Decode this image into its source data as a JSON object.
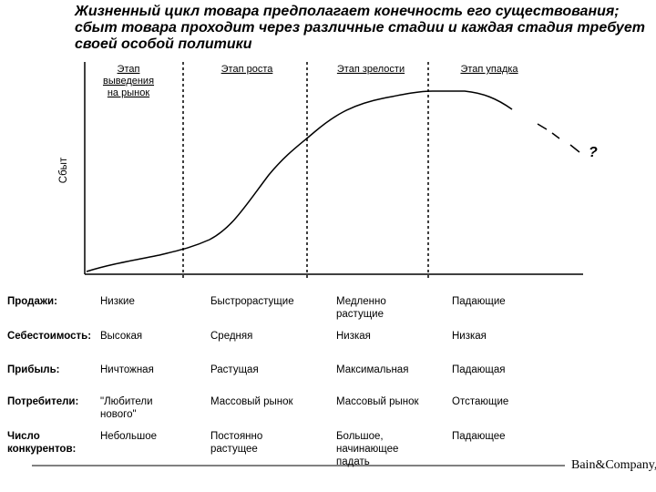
{
  "title": {
    "lines": [
      "Жизненный цикл товара предполагает конечность его существования;",
      "сбыт товара проходит через различные стадии и каждая стадия требует",
      "своей особой политики"
    ]
  },
  "diagram": {
    "y_axis_label": "Сбыт",
    "stages": [
      {
        "lines": [
          "Этап",
          "выведения",
          "на рынок"
        ]
      },
      {
        "lines": [
          "Этап роста"
        ]
      },
      {
        "lines": [
          "Этап зрелости"
        ]
      },
      {
        "lines": [
          "Этап упадка"
        ]
      }
    ],
    "unknown_marker": "?"
  },
  "table": {
    "rows": [
      {
        "label": [
          "Продажи:"
        ],
        "cells": [
          [
            "Низкие"
          ],
          [
            "Быстрорастущие"
          ],
          [
            "Медленно",
            "растущие"
          ],
          [
            "Падающие"
          ]
        ]
      },
      {
        "label": [
          "Себестоимость:"
        ],
        "cells": [
          [
            "Высокая"
          ],
          [
            "Средняя"
          ],
          [
            "Низкая"
          ],
          [
            "Низкая"
          ]
        ]
      },
      {
        "label": [
          "Прибыль:"
        ],
        "cells": [
          [
            "Ничтожная"
          ],
          [
            "Растущая"
          ],
          [
            "Максимальная"
          ],
          [
            "Падающая"
          ]
        ]
      },
      {
        "label": [
          "Потребители:"
        ],
        "cells": [
          [
            "\"Любители",
            "нового\""
          ],
          [
            "Массовый рынок"
          ],
          [
            "Массовый рынок"
          ],
          [
            "Отстающие"
          ]
        ]
      },
      {
        "label": [
          "Число",
          "конкурентов:"
        ],
        "cells": [
          [
            "Небольшое"
          ],
          [
            "Постоянно",
            "растущее"
          ],
          [
            "Большое,",
            "начинающее",
            "падать"
          ],
          [
            "Падающее"
          ]
        ]
      }
    ]
  },
  "footer": {
    "logo": "Bain&Company,In"
  }
}
